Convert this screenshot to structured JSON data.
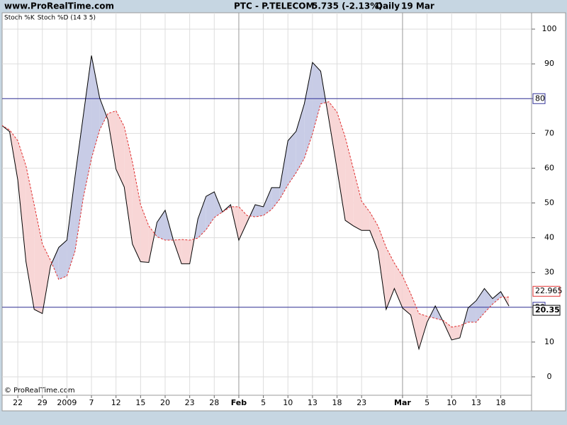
{
  "header": {
    "site": "www.ProRealTime.com",
    "instrument": "PTC - P.TELECOM",
    "price": "5.735 (-2.13%)",
    "period": "Daily",
    "date": "19 Mar"
  },
  "footer": "© ProRealTime.com",
  "chart_data": {
    "type": "line",
    "categories": [
      null,
      null,
      "22",
      null,
      null,
      "29",
      null,
      null,
      "2009",
      null,
      null,
      "7",
      null,
      null,
      "12",
      null,
      null,
      "15",
      null,
      null,
      "20",
      null,
      null,
      "23",
      null,
      null,
      "28",
      null,
      null,
      "Feb",
      null,
      null,
      "5",
      null,
      null,
      "10",
      null,
      null,
      "13",
      null,
      null,
      "18",
      null,
      null,
      "23",
      null,
      null,
      null,
      null,
      "Mar",
      null,
      null,
      "5",
      null,
      null,
      "10",
      null,
      null,
      "13",
      null,
      null,
      "18",
      null
    ],
    "series": [
      {
        "name": "Stoch %K",
        "color": "#000000",
        "values": [
          72.4,
          70.5,
          56.6,
          33.1,
          19.4,
          18.2,
          31.9,
          37.2,
          39.3,
          57.7,
          75.1,
          92.4,
          80.2,
          74.0,
          59.7,
          54.6,
          38.2,
          33.1,
          32.9,
          44.4,
          47.9,
          39.3,
          32.5,
          32.5,
          45.4,
          51.9,
          53.2,
          47.4,
          49.5,
          39.3,
          44.4,
          49.5,
          48.9,
          54.4,
          54.4,
          67.9,
          70.6,
          78.5,
          90.4,
          87.9,
          74.0,
          59.7,
          45.0,
          43.4,
          42.1,
          42.1,
          36.2,
          19.4,
          25.4,
          19.8,
          17.8,
          8.0,
          15.7,
          20.4,
          15.7,
          10.6,
          11.2,
          19.8,
          21.9,
          25.4,
          22.5,
          24.5,
          20.35
        ]
      },
      {
        "name": "Stoch %D (14 3 5)",
        "color": "#e03030",
        "values": [
          72.4,
          71.0,
          67.9,
          60.7,
          49.5,
          38.2,
          33.5,
          28.0,
          29.0,
          36.2,
          51.5,
          62.8,
          71.0,
          75.7,
          76.5,
          72.0,
          61.8,
          49.5,
          43.4,
          40.3,
          39.3,
          39.3,
          39.5,
          39.3,
          39.9,
          42.3,
          45.8,
          47.4,
          48.9,
          48.9,
          46.4,
          46.0,
          46.4,
          48.1,
          51.1,
          55.2,
          58.7,
          62.8,
          69.9,
          78.5,
          79.1,
          76.1,
          68.9,
          59.7,
          50.5,
          47.4,
          43.4,
          37.2,
          32.7,
          29.0,
          23.9,
          18.2,
          17.4,
          16.8,
          16.2,
          14.3,
          14.7,
          15.7,
          15.7,
          18.4,
          20.9,
          22.9,
          22.965
        ]
      }
    ],
    "fill_above": "#c8cce6",
    "fill_below": "#f8d6d6",
    "levels": [
      20,
      80
    ],
    "level_color": "#333399",
    "ylim": [
      -5.3,
      104.7
    ],
    "yticks": [
      0,
      10,
      20,
      30,
      40,
      50,
      60,
      70,
      80,
      90,
      100
    ],
    "grid": true
  }
}
